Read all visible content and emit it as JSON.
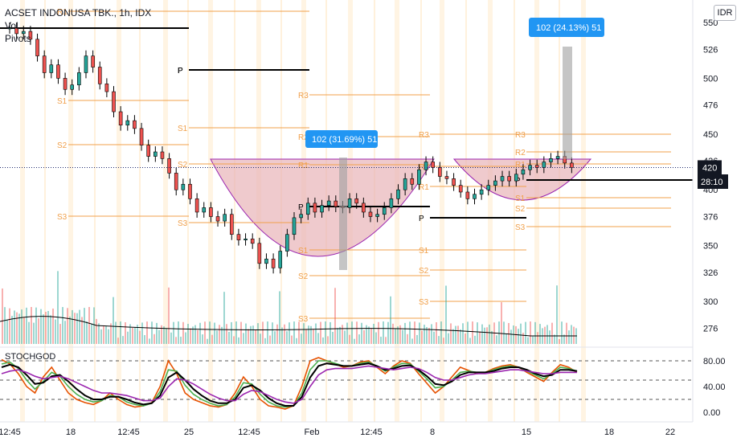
{
  "header": {
    "symbol_title": "ACSET INDONUSA TBK., 1h, IDX",
    "indicator_vol": "Vol",
    "indicator_pivots": "Pivots",
    "currency_button": "IDR"
  },
  "oscillator": {
    "name": "STOCHGOD"
  },
  "price_axis": {
    "ticks": [
      "550",
      "526",
      "500",
      "476",
      "450",
      "426",
      "400",
      "376",
      "350",
      "326",
      "300",
      "276"
    ]
  },
  "osc_axis": {
    "ticks": [
      "80.00",
      "40.00",
      "0.00"
    ]
  },
  "time_axis": {
    "labels": [
      "12:45",
      "18",
      "12:45",
      "25",
      "12:45",
      "Feb",
      "12:45",
      "8",
      "15",
      "18",
      "22"
    ]
  },
  "labels": {
    "last_price": "420",
    "countdown": "28:10",
    "callout_1": "102 (31.69%) 51",
    "callout_2": "102 (24.13%) 51"
  },
  "pivot_levels": [
    {
      "label": "R1"
    },
    {
      "label": "P"
    },
    {
      "label": "S1"
    },
    {
      "label": "S2"
    },
    {
      "label": "S3"
    },
    {
      "label": "P"
    },
    {
      "label": "S1"
    },
    {
      "label": "S2"
    },
    {
      "label": "S3"
    },
    {
      "label": "R3"
    },
    {
      "label": "R2"
    },
    {
      "label": "R1"
    },
    {
      "label": "P"
    },
    {
      "label": "S1"
    },
    {
      "label": "S2"
    },
    {
      "label": "S3"
    },
    {
      "label": "R3"
    },
    {
      "label": "R2"
    },
    {
      "label": "R1"
    },
    {
      "label": "P"
    },
    {
      "label": "S1"
    },
    {
      "label": "S2"
    },
    {
      "label": "S3"
    },
    {
      "label": "R3"
    },
    {
      "label": "R2"
    },
    {
      "label": "R1"
    },
    {
      "label": "P"
    },
    {
      "label": "S1"
    },
    {
      "label": "S2"
    },
    {
      "label": "S3"
    }
  ],
  "colors": {
    "up": "#26a69a",
    "down": "#ef5350",
    "pivot_support": "#f0a04b",
    "pivot_p": "#000000",
    "cup_fill": "#e8b4b8",
    "cup_stroke": "#9c27b0",
    "callout": "#2196f3",
    "grid": "#ffe0b2"
  },
  "chart_data": [
    {
      "type": "candlestick",
      "title": "ACSET INDONUSA TBK., 1h, IDX",
      "ylim": [
        265,
        560
      ],
      "y_unit": "IDR",
      "close": [
        545,
        540,
        542,
        535,
        520,
        505,
        512,
        500,
        490,
        494,
        505,
        520,
        510,
        495,
        488,
        470,
        458,
        462,
        455,
        440,
        430,
        434,
        428,
        415,
        400,
        405,
        392,
        380,
        384,
        376,
        372,
        378,
        360,
        355,
        356,
        352,
        334,
        338,
        330,
        345,
        360,
        375,
        378,
        388,
        380,
        386,
        390,
        385,
        384,
        392,
        388,
        380,
        376,
        378,
        384,
        392,
        400,
        410,
        405,
        418,
        425,
        420,
        412,
        410,
        404,
        398,
        392,
        396,
        400,
        404,
        408,
        412,
        408,
        414,
        418,
        422,
        420,
        425,
        428,
        430,
        424,
        420
      ],
      "annotations": [
        "102 (31.69%) 51",
        "102 (24.13%) 51"
      ]
    },
    {
      "type": "line",
      "title": "STOCHGOD",
      "ylim": [
        0,
        100
      ],
      "reference_lines": [
        80,
        50,
        20
      ],
      "series": [
        {
          "values": [
            82,
            75,
            60,
            40,
            30,
            55,
            70,
            50,
            30,
            20,
            15,
            12,
            18,
            30,
            20,
            12,
            8,
            10,
            15,
            40,
            80,
            60,
            30,
            20,
            15,
            10,
            8,
            12,
            30,
            55,
            40,
            20,
            10,
            8,
            5,
            10,
            40,
            80,
            85,
            80,
            75,
            70,
            72,
            78,
            80,
            70,
            60,
            72,
            80,
            76,
            60,
            45,
            30,
            40,
            55,
            70,
            65,
            60,
            62,
            68,
            72,
            74,
            70,
            62,
            55,
            48,
            62,
            74,
            70,
            62
          ]
        },
        {
          "values": [
            75,
            78,
            68,
            50,
            36,
            48,
            62,
            56,
            40,
            28,
            20,
            16,
            18,
            26,
            24,
            16,
            12,
            10,
            14,
            32,
            66,
            64,
            42,
            28,
            20,
            14,
            10,
            12,
            24,
            46,
            44,
            28,
            16,
            10,
            8,
            10,
            30,
            66,
            80,
            80,
            76,
            72,
            72,
            76,
            78,
            72,
            64,
            70,
            76,
            75,
            64,
            52,
            38,
            40,
            50,
            62,
            64,
            62,
            62,
            66,
            70,
            72,
            70,
            64,
            58,
            52,
            60,
            70,
            68,
            64
          ]
        },
        {
          "values": [
            70,
            74,
            70,
            58,
            44,
            46,
            56,
            58,
            48,
            36,
            26,
            20,
            20,
            24,
            24,
            20,
            15,
            12,
            14,
            26,
            54,
            62,
            50,
            36,
            26,
            18,
            14,
            14,
            20,
            38,
            42,
            34,
            22,
            14,
            10,
            10,
            24,
            54,
            72,
            76,
            74,
            72,
            72,
            74,
            76,
            72,
            66,
            68,
            72,
            73,
            66,
            56,
            44,
            42,
            48,
            58,
            62,
            62,
            62,
            64,
            68,
            70,
            70,
            66,
            60,
            56,
            58,
            66,
            66,
            64
          ]
        },
        {
          "values": [
            60,
            64,
            66,
            62,
            56,
            52,
            54,
            56,
            52,
            46,
            40,
            34,
            30,
            30,
            28,
            26,
            22,
            18,
            18,
            22,
            40,
            52,
            50,
            44,
            36,
            28,
            22,
            18,
            18,
            28,
            34,
            32,
            26,
            20,
            16,
            14,
            20,
            40,
            58,
            66,
            68,
            68,
            68,
            70,
            72,
            70,
            68,
            66,
            68,
            70,
            68,
            62,
            54,
            50,
            50,
            54,
            58,
            60,
            60,
            62,
            64,
            66,
            66,
            64,
            62,
            60,
            60,
            62,
            62,
            62
          ]
        }
      ]
    }
  ]
}
